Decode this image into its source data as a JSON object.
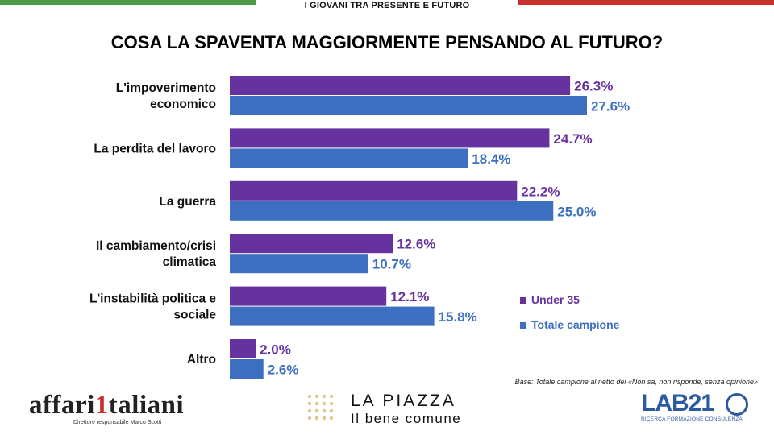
{
  "header": "I GIOVANI TRA PRESENTE E FUTURO",
  "colors": {
    "under35": "#6632a0",
    "totale": "#3d6fc0",
    "flag_green": "#4e9a47",
    "flag_red": "#c9302c"
  },
  "chart_data": {
    "type": "bar",
    "orientation": "horizontal",
    "title": "COSA LA SPAVENTA MAGGIORMENTE PENSANDO AL FUTURO?",
    "categories": [
      "L'impoverimento economico",
      "La perdita del lavoro",
      "La guerra",
      "Il cambiamento/crisi climatica",
      "L'instabilità politica e sociale",
      "Altro"
    ],
    "series": [
      {
        "name": "Under 35",
        "values": [
          26.3,
          24.7,
          22.2,
          12.6,
          12.1,
          2.0
        ],
        "labels": [
          "26.3%",
          "24.7%",
          "22.2%",
          "12.6%",
          "12.1%",
          "2.0%"
        ]
      },
      {
        "name": "Totale campione",
        "values": [
          27.6,
          18.4,
          25.0,
          10.7,
          15.8,
          2.6
        ],
        "labels": [
          "27.6%",
          "18.4%",
          "25.0%",
          "10.7%",
          "15.8%",
          "2.6%"
        ]
      }
    ],
    "legend_position": "right",
    "grid": false
  },
  "category_lines": [
    [
      "L'impoverimento",
      "economico"
    ],
    [
      "La perdita del lavoro"
    ],
    [
      "La guerra"
    ],
    [
      "Il cambiamento/crisi",
      "climatica"
    ],
    [
      "L'instabilità politica e",
      "sociale"
    ],
    [
      "Altro"
    ]
  ],
  "base_note": "Base: Totale campione al netto dei «Non sa, non risponde, senza opinione»",
  "logos": {
    "affari_word_a": "affari",
    "affari_word_one": "1",
    "affari_word_b": "taliani",
    "affari_sub": "Direttore responsabile Marco Scotti",
    "piazza_line1": "LA PIAZZA",
    "piazza_line2": "Il bene comune",
    "lab_big": "LAB21",
    "lab_small": "RICERCA FORMAZIONE CONSULENZA"
  }
}
